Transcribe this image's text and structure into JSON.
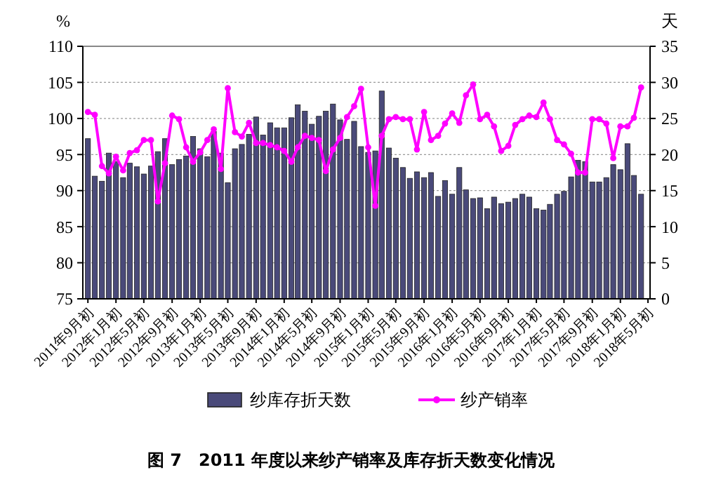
{
  "chart_data": {
    "type": "bar",
    "title": "图 7　2011 年度以来纱产销率及库存折天数变化情况",
    "ylabel": "%",
    "y2label": "天",
    "x": [
      "2011-09",
      "2011-10",
      "2011-11",
      "2011-12",
      "2012-01",
      "2012-02",
      "2012-03",
      "2012-04",
      "2012-05",
      "2012-06",
      "2012-07",
      "2012-08",
      "2012-09",
      "2012-10",
      "2012-11",
      "2012-12",
      "2013-01",
      "2013-02",
      "2013-03",
      "2013-04",
      "2013-05",
      "2013-06",
      "2013-07",
      "2013-08",
      "2013-09",
      "2013-10",
      "2013-11",
      "2013-12",
      "2014-01",
      "2014-02",
      "2014-03",
      "2014-04",
      "2014-05",
      "2014-06",
      "2014-07",
      "2014-08",
      "2014-09",
      "2014-10",
      "2014-11",
      "2014-12",
      "2015-01",
      "2015-02",
      "2015-03",
      "2015-04",
      "2015-05",
      "2015-06",
      "2015-07",
      "2015-08",
      "2015-09",
      "2015-10",
      "2015-11",
      "2015-12",
      "2016-01",
      "2016-02",
      "2016-03",
      "2016-04",
      "2016-05",
      "2016-06",
      "2016-07",
      "2016-08",
      "2016-09",
      "2016-10",
      "2016-11",
      "2016-12",
      "2017-01",
      "2017-02",
      "2017-03",
      "2017-04",
      "2017-05",
      "2017-06",
      "2017-07",
      "2017-08",
      "2017-09",
      "2017-10",
      "2017-11",
      "2017-12",
      "2018-01",
      "2018-02",
      "2018-03",
      "2018-04"
    ],
    "xlim": [
      "2011-08-10",
      "2018-05-10"
    ],
    "xticks": [
      {
        "value": "2011-09",
        "label": "2011年9月初"
      },
      {
        "value": "2012-01",
        "label": "2012年1月初"
      },
      {
        "value": "2012-05",
        "label": "2012年5月初"
      },
      {
        "value": "2012-09",
        "label": "2012年9月初"
      },
      {
        "value": "2013-01",
        "label": "2013年1月初"
      },
      {
        "value": "2013-05",
        "label": "2013年5月初"
      },
      {
        "value": "2013-09",
        "label": "2013年9月初"
      },
      {
        "value": "2014-01",
        "label": "2014年1月初"
      },
      {
        "value": "2014-05",
        "label": "2014年5月初"
      },
      {
        "value": "2014-09",
        "label": "2014年9月初"
      },
      {
        "value": "2015-01",
        "label": "2015年1月初"
      },
      {
        "value": "2015-05",
        "label": "2015年5月初"
      },
      {
        "value": "2015-09",
        "label": "2015年9月初"
      },
      {
        "value": "2016-01",
        "label": "2016年1月初"
      },
      {
        "value": "2016-05",
        "label": "2016年5月初"
      },
      {
        "value": "2016-09",
        "label": "2016年9月初"
      },
      {
        "value": "2017-01",
        "label": "2017年1月初"
      },
      {
        "value": "2017-05",
        "label": "2017年5月初"
      },
      {
        "value": "2017-09",
        "label": "2017年9月初"
      },
      {
        "value": "2018-01",
        "label": "2018年1月初"
      },
      {
        "value": "2018-05",
        "label": "2018年5月初"
      }
    ],
    "series": [
      {
        "name": "纱库存折天数",
        "axis": "y2",
        "color": "#4a4a7a",
        "values": [
          22.2,
          17,
          16.3,
          20.2,
          19,
          16.8,
          18.8,
          18.3,
          17.3,
          18.4,
          20.4,
          22.2,
          18.6,
          19.3,
          19.8,
          22.5,
          20.8,
          19.7,
          23.2,
          20.2,
          16.1,
          20.8,
          21.4,
          22.8,
          25.2,
          22.7,
          24.4,
          23.7,
          23.7,
          25.1,
          26.9,
          26,
          24.2,
          25.3,
          26,
          27,
          24.8,
          22.1,
          24.6,
          21.1,
          20.3,
          20.5,
          28.8,
          20.9,
          19.5,
          18.2,
          16.7,
          17.6,
          16.8,
          17.5,
          14.2,
          16.4,
          14.5,
          18.2,
          15.1,
          13.9,
          14,
          12.5,
          14.1,
          13.2,
          13.4,
          13.9,
          14.5,
          14.1,
          12.5,
          12.3,
          13.1,
          14.5,
          14.9,
          16.9,
          19.2,
          19,
          16.2,
          16.2,
          16.8,
          18.6,
          17.9,
          21.5,
          17.1,
          14.5
        ]
      },
      {
        "name": "纱产销率",
        "type": "line",
        "color": "#ff00ff",
        "marker": "circle",
        "values": [
          100.9,
          100.5,
          93.4,
          92.4,
          94.7,
          92.8,
          95.2,
          95.6,
          97,
          97,
          88.5,
          93.8,
          100.4,
          99.9,
          96,
          94,
          95.3,
          97,
          98.5,
          93,
          104.2,
          98.1,
          97.5,
          99.4,
          96.6,
          96.6,
          96.3,
          96,
          95.5,
          94,
          96,
          97.6,
          97.3,
          97,
          92.7,
          95.7,
          97.3,
          100.2,
          101.7,
          104.1,
          96,
          87.9,
          97.6,
          99.9,
          100.2,
          99.9,
          99.9,
          95.7,
          100.9,
          97,
          97.6,
          99.3,
          100.7,
          99.4,
          103.2,
          104.7,
          99.9,
          100.5,
          98.9,
          95.5,
          96.2,
          99.1,
          99.9,
          100.4,
          100.2,
          102.2,
          99.9,
          97,
          96.4,
          95.1,
          92.5,
          92.5,
          99.9,
          99.9,
          99.3,
          94.5,
          98.9,
          98.9,
          100.1,
          104.3
        ]
      }
    ],
    "ylim": [
      75,
      110
    ],
    "yticks": [
      75,
      80,
      85,
      90,
      95,
      100,
      105,
      110
    ],
    "y2lim": [
      0,
      35
    ],
    "y2ticks": [
      0,
      5,
      10,
      15,
      20,
      25,
      30,
      35
    ],
    "grid": "y",
    "legend": "bottom"
  }
}
